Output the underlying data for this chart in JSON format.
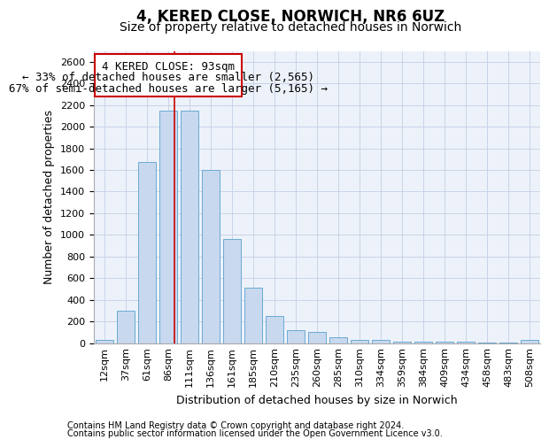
{
  "title": "4, KERED CLOSE, NORWICH, NR6 6UZ",
  "subtitle": "Size of property relative to detached houses in Norwich",
  "xlabel": "Distribution of detached houses by size in Norwich",
  "ylabel": "Number of detached properties",
  "footer_line1": "Contains HM Land Registry data © Crown copyright and database right 2024.",
  "footer_line2": "Contains public sector information licensed under the Open Government Licence v3.0.",
  "categories": [
    "12sqm",
    "37sqm",
    "61sqm",
    "86sqm",
    "111sqm",
    "136sqm",
    "161sqm",
    "185sqm",
    "210sqm",
    "235sqm",
    "260sqm",
    "285sqm",
    "310sqm",
    "334sqm",
    "359sqm",
    "384sqm",
    "409sqm",
    "434sqm",
    "458sqm",
    "483sqm",
    "508sqm"
  ],
  "values": [
    25,
    300,
    1670,
    2150,
    2150,
    1600,
    960,
    510,
    250,
    120,
    100,
    50,
    30,
    30,
    10,
    10,
    10,
    10,
    5,
    5,
    25
  ],
  "bar_color": "#c8d8ee",
  "bar_edge_color": "#6aaad4",
  "grid_color": "#c8d4e8",
  "background_color": "#edf2fa",
  "annotation_box_color": "#ffffff",
  "annotation_box_edge": "#cc0000",
  "redline_color": "#cc0000",
  "annotation_line1": "4 KERED CLOSE: 93sqm",
  "annotation_line2": "← 33% of detached houses are smaller (2,565)",
  "annotation_line3": "67% of semi-detached houses are larger (5,165) →",
  "ylim": [
    0,
    2700
  ],
  "yticks": [
    0,
    200,
    400,
    600,
    800,
    1000,
    1200,
    1400,
    1600,
    1800,
    2000,
    2200,
    2400,
    2600
  ],
  "title_fontsize": 12,
  "subtitle_fontsize": 10,
  "label_fontsize": 9,
  "tick_fontsize": 8,
  "footer_fontsize": 7
}
